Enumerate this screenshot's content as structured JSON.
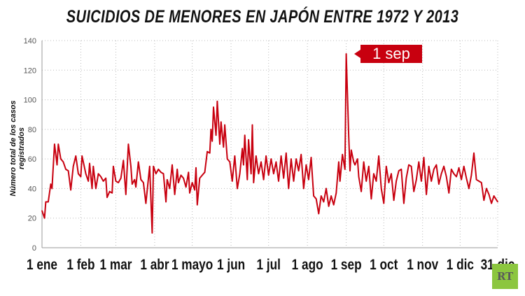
{
  "chart_data": {
    "type": "line",
    "title": "SUICIDIOS DE MENORES EN JAPÓN ENTRE 1972 Y 2013",
    "xlabel": "",
    "ylabel": "Número total de los casos registrados",
    "ylim": [
      0,
      140
    ],
    "xlim": [
      1,
      365
    ],
    "grid": true,
    "yticks": [
      0,
      20,
      40,
      60,
      80,
      100,
      120,
      140
    ],
    "xticks": [
      {
        "day": 1,
        "label": "1 ene"
      },
      {
        "day": 32,
        "label": "1 feb"
      },
      {
        "day": 60,
        "label": "1 mar"
      },
      {
        "day": 91,
        "label": "1 abr"
      },
      {
        "day": 121,
        "label": "1 mayo"
      },
      {
        "day": 152,
        "label": "1 jun"
      },
      {
        "day": 182,
        "label": "1 jul"
      },
      {
        "day": 213,
        "label": "1 ago"
      },
      {
        "day": 244,
        "label": "1 sep"
      },
      {
        "day": 274,
        "label": "1 oct"
      },
      {
        "day": 305,
        "label": "1 nov"
      },
      {
        "day": 335,
        "label": "1 dic"
      },
      {
        "day": 365,
        "label": "31 dic"
      }
    ],
    "annotation": {
      "day": 244,
      "label": "1 sep"
    },
    "series": [
      {
        "name": "suicidios",
        "color": "#c8000f",
        "points": [
          [
            1,
            25
          ],
          [
            3,
            20
          ],
          [
            4,
            31
          ],
          [
            6,
            31
          ],
          [
            8,
            43
          ],
          [
            9,
            40
          ],
          [
            11,
            70
          ],
          [
            13,
            56
          ],
          [
            14,
            70
          ],
          [
            16,
            60
          ],
          [
            18,
            58
          ],
          [
            20,
            53
          ],
          [
            22,
            52
          ],
          [
            24,
            39
          ],
          [
            26,
            55
          ],
          [
            28,
            62
          ],
          [
            30,
            50
          ],
          [
            32,
            48
          ],
          [
            33,
            62
          ],
          [
            36,
            50
          ],
          [
            38,
            45
          ],
          [
            39,
            57
          ],
          [
            41,
            40
          ],
          [
            42,
            55
          ],
          [
            44,
            40
          ],
          [
            46,
            50
          ],
          [
            48,
            48
          ],
          [
            50,
            45
          ],
          [
            52,
            47
          ],
          [
            53,
            34
          ],
          [
            55,
            38
          ],
          [
            57,
            37
          ],
          [
            58,
            55
          ],
          [
            60,
            45
          ],
          [
            62,
            44
          ],
          [
            64,
            47
          ],
          [
            66,
            59
          ],
          [
            68,
            36
          ],
          [
            70,
            70
          ],
          [
            72,
            55
          ],
          [
            73,
            43
          ],
          [
            75,
            46
          ],
          [
            76,
            41
          ],
          [
            78,
            58
          ],
          [
            80,
            46
          ],
          [
            82,
            44
          ],
          [
            84,
            30
          ],
          [
            87,
            55
          ],
          [
            89,
            10
          ],
          [
            90,
            55
          ],
          [
            92,
            50
          ],
          [
            94,
            53
          ],
          [
            96,
            51
          ],
          [
            98,
            50
          ],
          [
            100,
            31
          ],
          [
            101,
            46
          ],
          [
            103,
            40
          ],
          [
            105,
            56
          ],
          [
            107,
            36
          ],
          [
            109,
            53
          ],
          [
            110,
            44
          ],
          [
            112,
            49
          ],
          [
            114,
            47
          ],
          [
            116,
            41
          ],
          [
            118,
            51
          ],
          [
            119,
            37
          ],
          [
            121,
            44
          ],
          [
            123,
            39
          ],
          [
            124,
            54
          ],
          [
            125,
            29
          ],
          [
            127,
            47
          ],
          [
            129,
            49
          ],
          [
            131,
            51
          ],
          [
            133,
            65
          ],
          [
            135,
            64
          ],
          [
            136,
            80
          ],
          [
            137,
            72
          ],
          [
            138,
            95
          ],
          [
            140,
            76
          ],
          [
            141,
            99
          ],
          [
            143,
            70
          ],
          [
            144,
            85
          ],
          [
            146,
            68
          ],
          [
            147,
            83
          ],
          [
            149,
            60
          ],
          [
            151,
            58
          ],
          [
            153,
            45
          ],
          [
            155,
            62
          ],
          [
            157,
            40
          ],
          [
            159,
            50
          ],
          [
            161,
            67
          ],
          [
            162,
            56
          ],
          [
            163,
            76
          ],
          [
            165,
            46
          ],
          [
            166,
            73
          ],
          [
            168,
            50
          ],
          [
            169,
            83
          ],
          [
            170,
            44
          ],
          [
            172,
            62
          ],
          [
            174,
            50
          ],
          [
            176,
            58
          ],
          [
            178,
            46
          ],
          [
            180,
            62
          ],
          [
            182,
            49
          ],
          [
            184,
            60
          ],
          [
            186,
            50
          ],
          [
            188,
            58
          ],
          [
            190,
            45
          ],
          [
            192,
            62
          ],
          [
            194,
            47
          ],
          [
            196,
            64
          ],
          [
            198,
            40
          ],
          [
            200,
            60
          ],
          [
            202,
            45
          ],
          [
            204,
            60
          ],
          [
            206,
            52
          ],
          [
            208,
            63
          ],
          [
            210,
            40
          ],
          [
            212,
            56
          ],
          [
            214,
            46
          ],
          [
            216,
            61
          ],
          [
            218,
            35
          ],
          [
            220,
            33
          ],
          [
            222,
            23
          ],
          [
            224,
            35
          ],
          [
            226,
            31
          ],
          [
            228,
            40
          ],
          [
            230,
            28
          ],
          [
            232,
            35
          ],
          [
            234,
            29
          ],
          [
            236,
            37
          ],
          [
            238,
            58
          ],
          [
            239,
            45
          ],
          [
            241,
            63
          ],
          [
            243,
            53
          ],
          [
            244,
            131
          ],
          [
            246,
            75
          ],
          [
            247,
            52
          ],
          [
            248,
            66
          ],
          [
            250,
            58
          ],
          [
            251,
            56
          ],
          [
            253,
            60
          ],
          [
            254,
            48
          ],
          [
            256,
            38
          ],
          [
            258,
            58
          ],
          [
            260,
            45
          ],
          [
            262,
            55
          ],
          [
            264,
            33
          ],
          [
            266,
            50
          ],
          [
            268,
            45
          ],
          [
            270,
            62
          ],
          [
            272,
            40
          ],
          [
            274,
            30
          ],
          [
            276,
            55
          ],
          [
            278,
            44
          ],
          [
            280,
            50
          ],
          [
            282,
            32
          ],
          [
            284,
            45
          ],
          [
            286,
            52
          ],
          [
            288,
            53
          ],
          [
            290,
            30
          ],
          [
            292,
            47
          ],
          [
            294,
            56
          ],
          [
            296,
            55
          ],
          [
            298,
            38
          ],
          [
            300,
            46
          ],
          [
            302,
            58
          ],
          [
            304,
            45
          ],
          [
            306,
            61
          ],
          [
            308,
            36
          ],
          [
            310,
            55
          ],
          [
            312,
            45
          ],
          [
            314,
            53
          ],
          [
            316,
            56
          ],
          [
            318,
            43
          ],
          [
            320,
            50
          ],
          [
            322,
            55
          ],
          [
            324,
            48
          ],
          [
            326,
            37
          ],
          [
            328,
            53
          ],
          [
            330,
            50
          ],
          [
            332,
            48
          ],
          [
            334,
            54
          ],
          [
            336,
            46
          ],
          [
            338,
            55
          ],
          [
            340,
            47
          ],
          [
            342,
            40
          ],
          [
            344,
            49
          ],
          [
            346,
            64
          ],
          [
            348,
            46
          ],
          [
            350,
            45
          ],
          [
            352,
            44
          ],
          [
            354,
            32
          ],
          [
            356,
            40
          ],
          [
            358,
            36
          ],
          [
            360,
            30
          ],
          [
            362,
            35
          ],
          [
            365,
            31
          ]
        ]
      }
    ]
  },
  "logo": "RT"
}
